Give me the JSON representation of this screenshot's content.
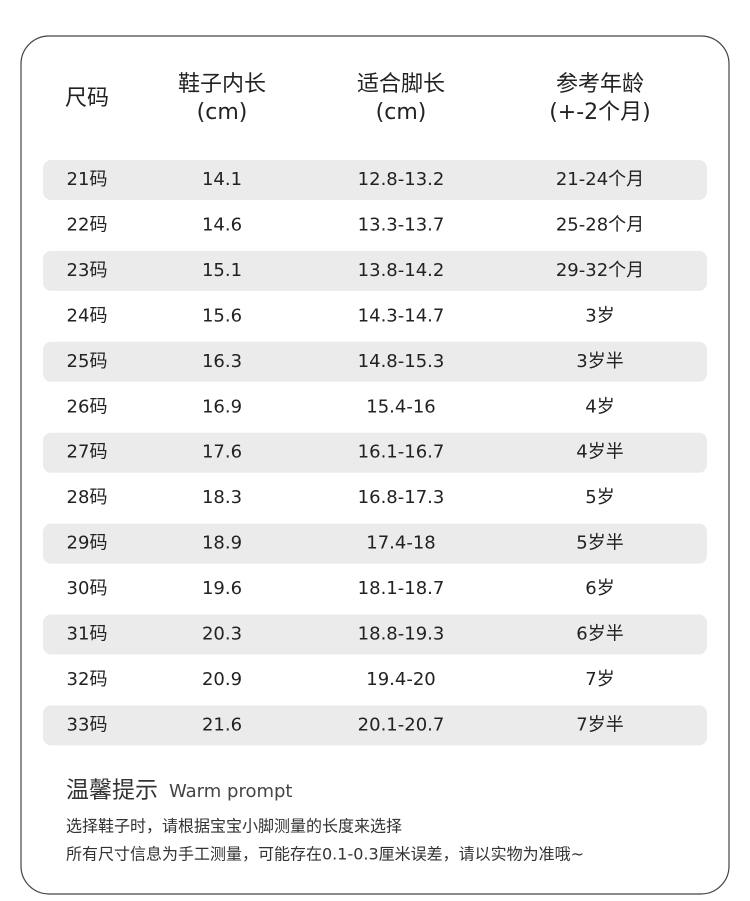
{
  "table": {
    "header": [
      [
        "尺码"
      ],
      [
        "鞋子内长",
        "(cm)"
      ],
      [
        "适合脚长",
        "(cm)"
      ],
      [
        "参考年龄",
        "(+-2个月)"
      ]
    ],
    "rows": [
      [
        "21码",
        "14.1",
        "12.8-13.2",
        "21-24个月"
      ],
      [
        "22码",
        "14.6",
        "13.3-13.7",
        "25-28个月"
      ],
      [
        "23码",
        "15.1",
        "13.8-14.2",
        "29-32个月"
      ],
      [
        "24码",
        "15.6",
        "14.3-14.7",
        "3岁"
      ],
      [
        "25码",
        "16.3",
        "14.8-15.3",
        "3岁半"
      ],
      [
        "26码",
        "16.9",
        "15.4-16",
        "4岁"
      ],
      [
        "27码",
        "17.6",
        "16.1-16.7",
        "4岁半"
      ],
      [
        "28码",
        "18.3",
        "16.8-17.3",
        "5岁"
      ],
      [
        "29码",
        "18.9",
        "17.4-18",
        "5岁半"
      ],
      [
        "30码",
        "19.6",
        "18.1-18.7",
        "6岁"
      ],
      [
        "31码",
        "20.3",
        "18.8-19.3",
        "6岁半"
      ],
      [
        "32码",
        "20.9",
        "19.4-20",
        "7岁"
      ],
      [
        "33码",
        "21.6",
        "20.1-20.7",
        "7岁半"
      ]
    ]
  },
  "notes": {
    "title": "温馨提示",
    "subtitle": "Warm prompt",
    "lines": [
      "选择鞋子时，请根据宝宝小脚测量的长度来选择",
      "所有尺寸信息为手工测量，可能存在0.1-0.3厘米误差，请以实物为准哦~"
    ]
  }
}
